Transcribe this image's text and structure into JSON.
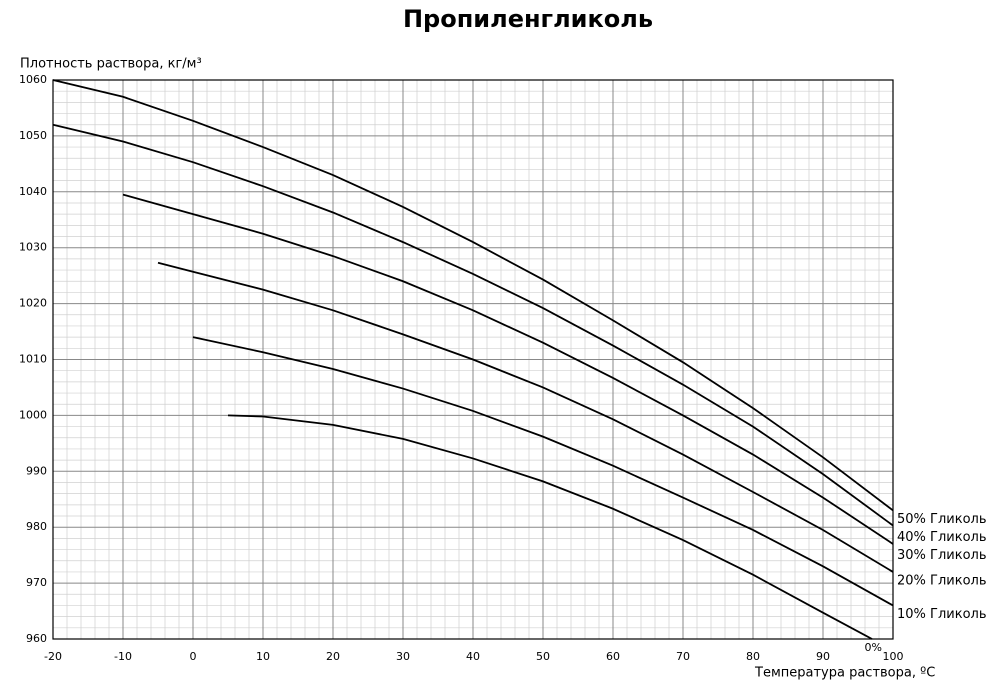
{
  "chart_data": {
    "type": "line",
    "title": "Пропиленгликоль",
    "y_label": "Плотность раствора, кг/м³",
    "x_label": "Температура раствора, ºC",
    "xlim": [
      -20,
      100
    ],
    "xticks": [
      -20,
      -10,
      0,
      10,
      20,
      30,
      40,
      50,
      60,
      70,
      80,
      90,
      100
    ],
    "ylim": [
      960,
      1060
    ],
    "yticks": [
      960,
      970,
      980,
      990,
      1000,
      1010,
      1020,
      1030,
      1040,
      1050,
      1060
    ],
    "grid": true,
    "series": [
      {
        "name": "50% Гликоль",
        "color": "#000000",
        "x": [
          -20,
          -10,
          0,
          10,
          20,
          30,
          40,
          50,
          60,
          70,
          80,
          90,
          100
        ],
        "values": [
          1060,
          1057,
          1052.7,
          1048,
          1043,
          1037.3,
          1031,
          1024.3,
          1017,
          1009.5,
          1001.3,
          992.5,
          983
        ]
      },
      {
        "name": "40% Гликоль",
        "color": "#000000",
        "x": [
          -20,
          -10,
          0,
          10,
          20,
          30,
          40,
          50,
          60,
          70,
          80,
          90,
          100
        ],
        "values": [
          1052,
          1049,
          1045.3,
          1041,
          1036.3,
          1031,
          1025.3,
          1019.2,
          1012.5,
          1005.5,
          998,
          989.5,
          980.3
        ]
      },
      {
        "name": "30% Гликоль",
        "color": "#000000",
        "x": [
          -10,
          0,
          10,
          20,
          30,
          40,
          50,
          60,
          70,
          80,
          90,
          100
        ],
        "values": [
          1039.5,
          1036,
          1032.5,
          1028.5,
          1024,
          1018.8,
          1013,
          1006.7,
          1000,
          993,
          985.3,
          977
        ]
      },
      {
        "name": "20% Гликоль",
        "color": "#000000",
        "x": [
          -5,
          0,
          10,
          20,
          30,
          40,
          50,
          60,
          70,
          80,
          90,
          100
        ],
        "values": [
          1027.3,
          1025.7,
          1022.5,
          1018.8,
          1014.5,
          1010,
          1005,
          999.3,
          993,
          986.3,
          979.5,
          972
        ]
      },
      {
        "name": "10% Гликоль",
        "color": "#000000",
        "x": [
          0,
          10,
          20,
          30,
          40,
          50,
          60,
          70,
          80,
          90,
          100
        ],
        "values": [
          1014,
          1011.3,
          1008.3,
          1004.8,
          1000.8,
          996.2,
          991,
          985.3,
          979.5,
          973,
          966
        ]
      },
      {
        "name": "0%",
        "color": "#000000",
        "x": [
          5,
          10,
          20,
          30,
          40,
          50,
          60,
          70,
          80,
          90,
          97
        ],
        "values": [
          1000,
          999.8,
          998.3,
          995.8,
          992.3,
          988.2,
          983.3,
          977.7,
          971.5,
          964.7,
          960
        ]
      }
    ]
  }
}
